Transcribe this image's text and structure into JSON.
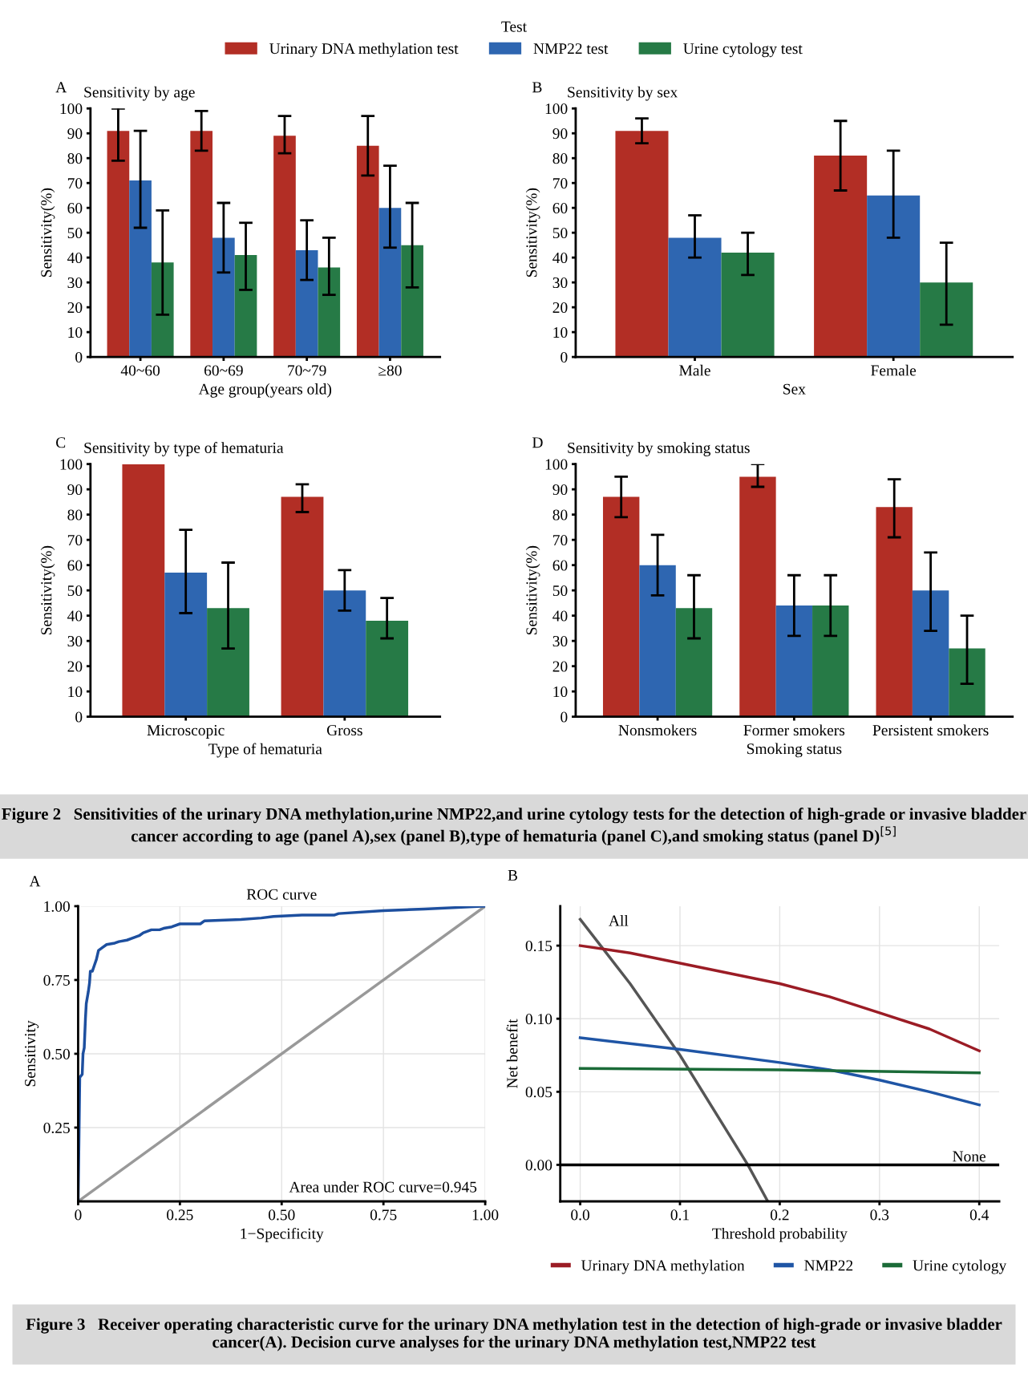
{
  "chart_data": [
    {
      "type": "bar",
      "title": "Sensitivity by age",
      "xlabel": "Age group(years old)",
      "ylabel": "Sensitivity(%)",
      "legend_title": "Test",
      "legend": "top",
      "annotations": [
        "A"
      ],
      "categories": [
        "40~60",
        "60~69",
        "70~79",
        "≥80"
      ],
      "ylim": [
        0,
        100
      ],
      "yticks": [
        0,
        10,
        20,
        30,
        40,
        50,
        60,
        70,
        80,
        90,
        100
      ],
      "grid": false,
      "series": [
        {
          "name": "Urinary DNA methylation test",
          "color": "#b22e25",
          "values": [
            91,
            91,
            89,
            85
          ],
          "errors": [
            [
              79,
              100
            ],
            [
              83,
              99
            ],
            [
              82,
              97
            ],
            [
              73,
              97
            ]
          ]
        },
        {
          "name": "NMP22 test",
          "color": "#2e66b1",
          "values": [
            71,
            48,
            43,
            60
          ],
          "errors": [
            [
              52,
              91
            ],
            [
              34,
              62
            ],
            [
              31,
              55
            ],
            [
              44,
              77
            ]
          ]
        },
        {
          "name": "Urine cytology test",
          "color": "#267a46",
          "values": [
            38,
            41,
            36,
            45
          ],
          "errors": [
            [
              17,
              59
            ],
            [
              27,
              54
            ],
            [
              25,
              48
            ],
            [
              28,
              62
            ]
          ]
        }
      ]
    },
    {
      "type": "bar",
      "title": "Sensitivity by sex",
      "xlabel": "Sex",
      "ylabel": "Sensitivity(%)",
      "annotations": [
        "B"
      ],
      "categories": [
        "Male",
        "Female"
      ],
      "ylim": [
        0,
        100
      ],
      "yticks": [
        0,
        10,
        20,
        30,
        40,
        50,
        60,
        70,
        80,
        90,
        100
      ],
      "grid": false,
      "series": [
        {
          "color": "#b22e25",
          "values": [
            91,
            81
          ],
          "errors": [
            [
              86,
              96
            ],
            [
              67,
              95
            ]
          ]
        },
        {
          "color": "#2e66b1",
          "values": [
            48,
            65
          ],
          "errors": [
            [
              40,
              57
            ],
            [
              48,
              83
            ]
          ]
        },
        {
          "color": "#267a46",
          "values": [
            42,
            30
          ],
          "errors": [
            [
              33,
              50
            ],
            [
              13,
              46
            ]
          ]
        }
      ]
    },
    {
      "type": "bar",
      "title": "Sensitivity by type of hematuria",
      "xlabel": "Type of hematuria",
      "ylabel": "Sensitivity(%)",
      "annotations": [
        "C"
      ],
      "categories": [
        "Microscopic",
        "Gross"
      ],
      "ylim": [
        0,
        100
      ],
      "yticks": [
        0,
        10,
        20,
        30,
        40,
        50,
        60,
        70,
        80,
        90,
        100
      ],
      "grid": false,
      "series": [
        {
          "color": "#b22e25",
          "values": [
            100,
            87
          ],
          "errors": [
            null,
            [
              81,
              92
            ]
          ]
        },
        {
          "color": "#2e66b1",
          "values": [
            57,
            50
          ],
          "errors": [
            [
              41,
              74
            ],
            [
              42,
              58
            ]
          ]
        },
        {
          "color": "#267a46",
          "values": [
            43,
            38
          ],
          "errors": [
            [
              27,
              61
            ],
            [
              31,
              47
            ]
          ]
        }
      ]
    },
    {
      "type": "bar",
      "title": "Sensitivity by smoking status",
      "xlabel": "Smoking status",
      "ylabel": "Sensitivity(%)",
      "annotations": [
        "D",
        "Figure 2   Sensitivities of the urinary DNA methylation,urine NMP22,and urine cytology tests for the detection of high-grade or invasive bladder cancer according to age (panel A),sex (panel B),type of hematuria (panel C),and smoking status (panel D)$^{[5]}$"
      ],
      "categories": [
        "Nonsmokers",
        "Former smokers",
        "Persistent smokers"
      ],
      "ylim": [
        0,
        100
      ],
      "yticks": [
        0,
        10,
        20,
        30,
        40,
        50,
        60,
        70,
        80,
        90,
        100
      ],
      "grid": false,
      "series": [
        {
          "color": "#b22e25",
          "values": [
            87,
            95,
            83
          ],
          "errors": [
            [
              79,
              95
            ],
            [
              91,
              100
            ],
            [
              71,
              94
            ]
          ]
        },
        {
          "color": "#2e66b1",
          "values": [
            60,
            44,
            50
          ],
          "errors": [
            [
              48,
              72
            ],
            [
              32,
              56
            ],
            [
              34,
              65
            ]
          ]
        },
        {
          "color": "#267a46",
          "values": [
            43,
            44,
            27
          ],
          "errors": [
            [
              31,
              56
            ],
            [
              32,
              56
            ],
            [
              13,
              40
            ]
          ]
        }
      ]
    },
    {
      "type": "line",
      "title": "ROC curve",
      "xlabel": "1−Specificity",
      "ylabel": "Sensitivity",
      "annotations": [
        "A",
        "Area under ROC curve=0.945",
        "Figure 3   Receiver operating characteristic curve for the urinary DNA methylation test in the detection of high-grade or invasive bladder cancer(A). Decision curve analyses for the urinary DNA methylation test,NMP22 test"
      ],
      "xlim": [
        0,
        1
      ],
      "ylim": [
        0,
        1
      ],
      "xticks": [
        0,
        {
          "value": 0.25,
          "label": "0.25"
        },
        {
          "value": 0.5,
          "label": "0.50"
        },
        {
          "value": 0.75,
          "label": "0.75"
        },
        {
          "value": 1,
          "label": "1.00"
        }
      ],
      "yticks": [
        {
          "value": 0.25,
          "label": "0.25"
        },
        {
          "value": 0.5,
          "label": "0.50"
        },
        {
          "value": 0.75,
          "label": "0.75"
        },
        {
          "value": 1,
          "label": "1.00"
        }
      ],
      "grid": true,
      "series": [
        {
          "color": "#999999",
          "x": [
            0,
            1
          ],
          "values": [
            0,
            1
          ]
        },
        {
          "color": "#1d4f9f",
          "x": [
            0,
            0.002,
            0.004,
            0.01,
            0.012,
            0.015,
            0.018,
            0.02,
            0.025,
            0.028,
            0.03,
            0.035,
            0.04,
            0.045,
            0.05,
            0.06,
            0.07,
            0.09,
            0.1,
            0.12,
            0.13,
            0.15,
            0.16,
            0.18,
            0.2,
            0.21,
            0.23,
            0.25,
            0.3,
            0.31,
            0.4,
            0.45,
            0.48,
            0.55,
            0.63,
            0.64,
            0.75,
            0.85,
            1
          ],
          "values": [
            0,
            0.2,
            0.42,
            0.43,
            0.5,
            0.52,
            0.62,
            0.67,
            0.71,
            0.74,
            0.78,
            0.78,
            0.8,
            0.82,
            0.85,
            0.86,
            0.87,
            0.875,
            0.88,
            0.885,
            0.89,
            0.9,
            0.91,
            0.92,
            0.92,
            0.925,
            0.93,
            0.94,
            0.94,
            0.95,
            0.955,
            0.96,
            0.965,
            0.97,
            0.97,
            0.975,
            0.985,
            0.99,
            1
          ]
        }
      ]
    },
    {
      "type": "line",
      "xlabel": "Threshold probability",
      "ylabel": "Net benefit",
      "legend": "bottom",
      "annotations": [
        "B",
        "All"
      ],
      "xlim": [
        -0.02,
        0.42
      ],
      "ylim": [
        -0.025,
        0.177
      ],
      "xticks": [
        {
          "value": 0,
          "label": "0.0"
        },
        0.1,
        0.2,
        0.3,
        0.4
      ],
      "yticks": [
        {
          "value": 0,
          "label": "0.00"
        },
        0.05,
        {
          "value": 0.1,
          "label": "0.10"
        },
        0.15
      ],
      "grid": true,
      "ref_lines": [
        {
          "axis": "y",
          "value": 0,
          "label": "None",
          "color": "#000000"
        }
      ],
      "series": [
        {
          "color": "#555555",
          "x": [
            0,
            0.05,
            0.1,
            0.168,
            0.188
          ],
          "values": [
            0.168,
            0.124,
            0.075,
            0,
            -0.025
          ]
        },
        {
          "name": "Urinary DNA methylation",
          "color": "#9b1c25",
          "x": [
            0,
            0.05,
            0.1,
            0.15,
            0.2,
            0.25,
            0.3,
            0.35,
            0.4
          ],
          "values": [
            0.15,
            0.145,
            0.138,
            0.131,
            0.124,
            0.115,
            0.104,
            0.093,
            0.078
          ]
        },
        {
          "name": "NMP22",
          "color": "#1f55a5",
          "x": [
            0,
            0.1,
            0.2,
            0.25,
            0.3,
            0.35,
            0.4
          ],
          "values": [
            0.087,
            0.079,
            0.07,
            0.065,
            0.058,
            0.05,
            0.041
          ]
        },
        {
          "name": "Urine cytology",
          "color": "#1b6b38",
          "x": [
            0,
            0.2,
            0.4
          ],
          "values": [
            0.066,
            0.065,
            0.063
          ]
        }
      ]
    }
  ]
}
